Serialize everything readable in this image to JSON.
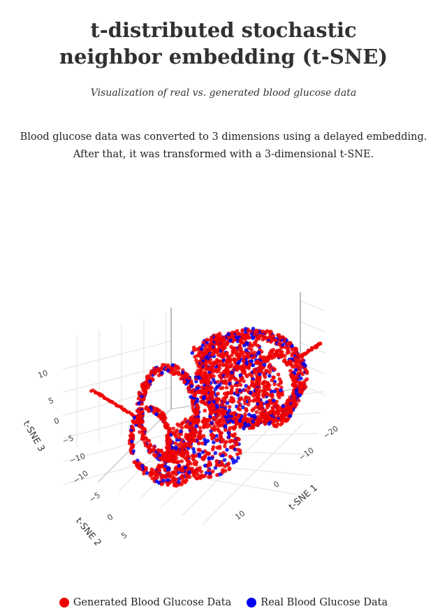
{
  "header": {
    "title_line1": "t-distributed stochastic",
    "title_line2": "neighbor embedding (t-SNE)",
    "subtitle": "Visualization of real vs. generated blood glucose data",
    "description_line1": "Blood glucose data was converted to 3 dimensions using a delayed embedding.",
    "description_line2": "After that, it was transformed with a 3-dimensional t-SNE."
  },
  "chart_data": {
    "type": "scatter",
    "dimensions": 3,
    "axes": {
      "x": {
        "label": "t-SNE 1",
        "ticks": [
          "−20",
          "−10",
          "0",
          "10"
        ]
      },
      "y": {
        "label": "t-SNE 2",
        "ticks": [
          "−10",
          "−5",
          "0",
          "5"
        ]
      },
      "z": {
        "label": "t-SNE 3",
        "ticks": [
          "−10",
          "−5",
          "0",
          "5",
          "10"
        ]
      }
    },
    "series": [
      {
        "name": "Generated Blood Glucose Data",
        "color": "#ee0000"
      },
      {
        "name": "Real Blood Glucose Data",
        "color": "#0000ee"
      }
    ],
    "legend_position": "bottom-center",
    "grid": true
  }
}
